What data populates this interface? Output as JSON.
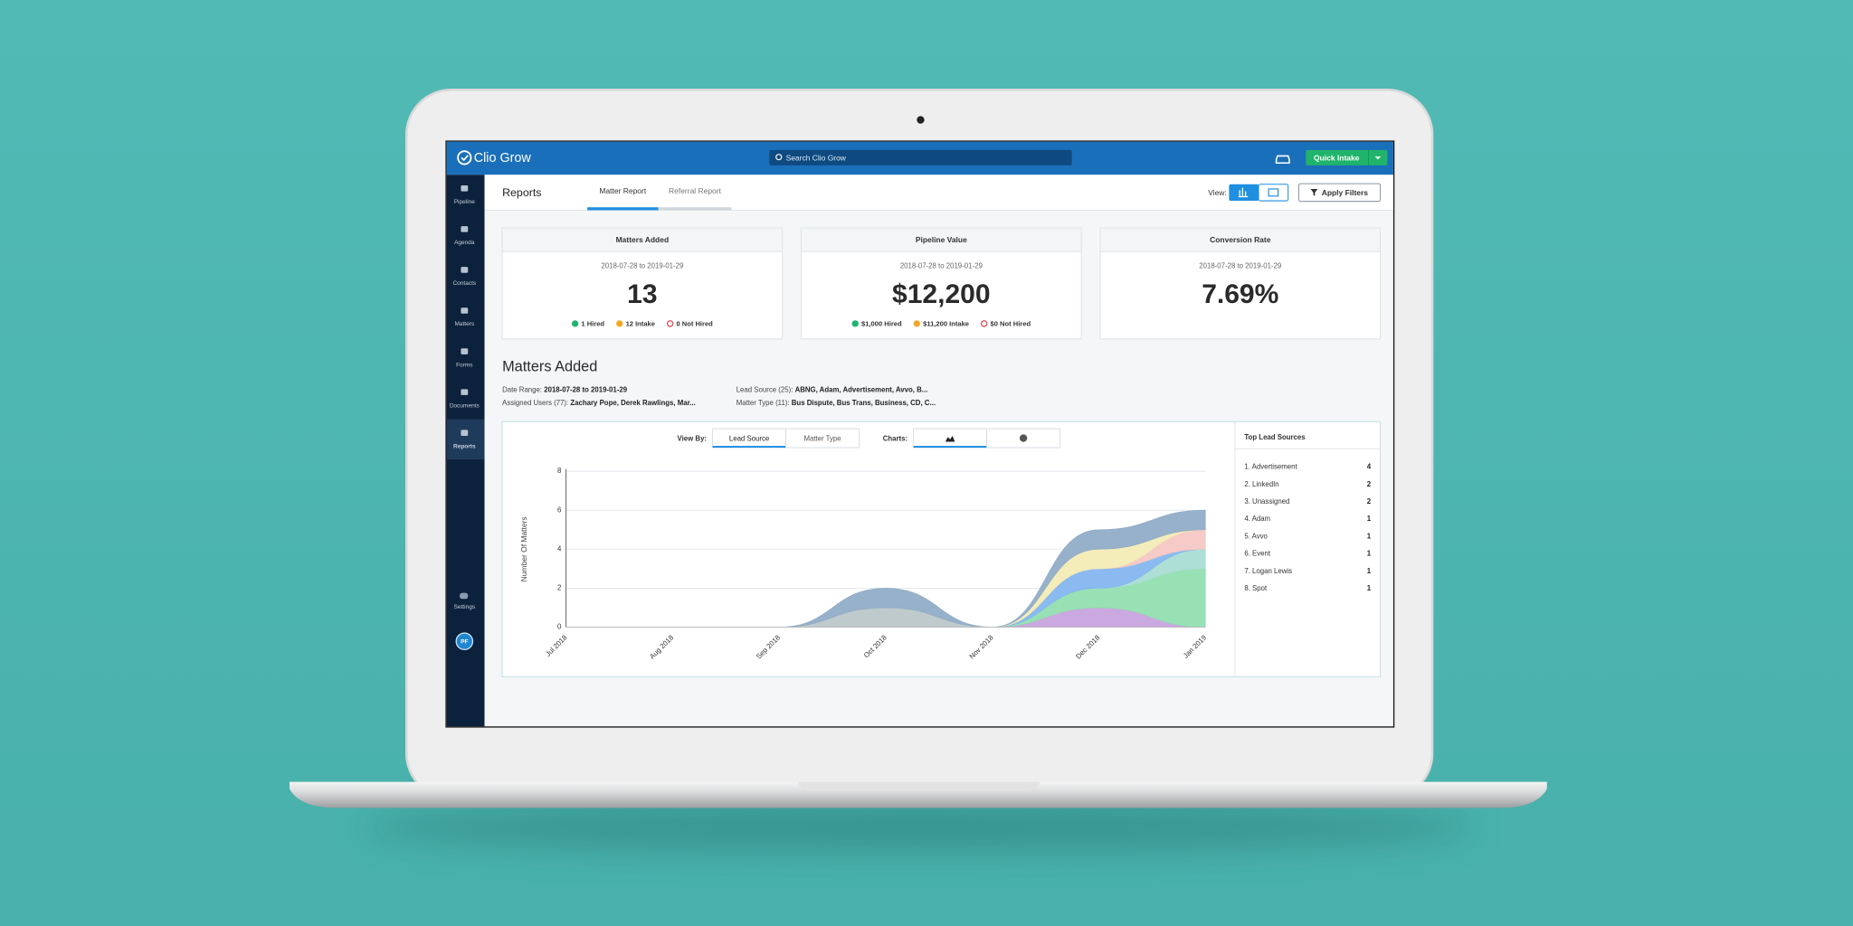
{
  "app": {
    "logo": "Clio Grow",
    "search": "Search Clio Grow",
    "quick_intake": "Quick Intake"
  },
  "sidebar": [
    "Pipeline",
    "Agenda",
    "Contacts",
    "Matters",
    "Forms",
    "Documents",
    "Reports"
  ],
  "settings": "Settings",
  "avatar": "PF",
  "header": {
    "title": "Reports",
    "tabs": [
      "Matter Report",
      "Referral Report"
    ],
    "view_label": "View:",
    "apply_filters": "Apply Filters"
  },
  "cards": [
    {
      "title": "Matters Added",
      "date_range": "2018-07-28 to 2019-01-29",
      "value": "13",
      "statuses": [
        "1 Hired",
        "12 Intake",
        "0 Not Hired"
      ]
    },
    {
      "title": "Pipeline Value",
      "date_range": "2018-07-28 to 2019-01-29",
      "value": "$12,200",
      "statuses": [
        "$1,000 Hired",
        "$11,200 Intake",
        "$0 Not Hired"
      ]
    },
    {
      "title": "Conversion Rate",
      "date_range": "2018-07-28 to 2019-01-29",
      "value": "7.69%"
    }
  ],
  "section": {
    "title": "Matters Added",
    "filters": [
      {
        "label": "Date Range:",
        "value": "2018-07-28 to 2019-01-29"
      },
      {
        "label": "Assigned Users (77):",
        "value": "Zachary Pope, Derek Rawlings, Mar..."
      },
      {
        "label": "Lead Source (25):",
        "value": "ABNG, Adam, Advertisement, Avvo, B..."
      },
      {
        "label": "Matter Type (11):",
        "value": "Bus Dispute, Bus Trans, Business, CD, C..."
      }
    ],
    "view_by_label": "View By:",
    "view_by": [
      "Lead Source",
      "Matter Type"
    ],
    "charts_label": "Charts:"
  },
  "top_lead_sources": {
    "title": "Top Lead Sources",
    "items": [
      {
        "label": "1. Advertisement",
        "count": 4
      },
      {
        "label": "2. LinkedIn",
        "count": 2
      },
      {
        "label": "3. Unassigned",
        "count": 2
      },
      {
        "label": "4. Adam",
        "count": 1
      },
      {
        "label": "5. Avvo",
        "count": 1
      },
      {
        "label": "6. Event",
        "count": 1
      },
      {
        "label": "7. Logan Lewis",
        "count": 1
      },
      {
        "label": "8. Spot",
        "count": 1
      }
    ]
  },
  "chart_data": {
    "type": "stacked_area",
    "y_label": "Number Of Matters",
    "categories": [
      "Jul 2018",
      "Aug 2018",
      "Sep 2018",
      "Oct 2018",
      "Nov 2018",
      "Dec 2018",
      "Jan 2019"
    ],
    "ylim": [
      0,
      8
    ],
    "yticks": [
      0,
      2,
      4,
      6,
      8
    ],
    "grid": true,
    "series": [
      {
        "color": "#b9c6c8",
        "values": [
          0,
          0,
          0,
          1,
          0,
          0,
          0
        ]
      },
      {
        "color": "#c6a2dd",
        "values": [
          0,
          0,
          0,
          0,
          0,
          1,
          0
        ]
      },
      {
        "color": "#8fdeae",
        "values": [
          0,
          0,
          0,
          0,
          0,
          1,
          3
        ]
      },
      {
        "color": "#a6dcd2",
        "values": [
          0,
          0,
          0,
          0,
          0,
          0,
          1
        ]
      },
      {
        "color": "#80b4ef",
        "values": [
          0,
          0,
          0,
          0,
          0,
          1,
          0
        ]
      },
      {
        "color": "#f5c6c2",
        "values": [
          0,
          0,
          0,
          0,
          0,
          0,
          1
        ]
      },
      {
        "color": "#f3ebb4",
        "values": [
          0,
          0,
          0,
          0,
          0,
          1,
          0
        ]
      },
      {
        "color": "#8eaac6",
        "values": [
          0,
          0,
          0,
          1,
          0,
          1,
          1
        ]
      }
    ]
  }
}
